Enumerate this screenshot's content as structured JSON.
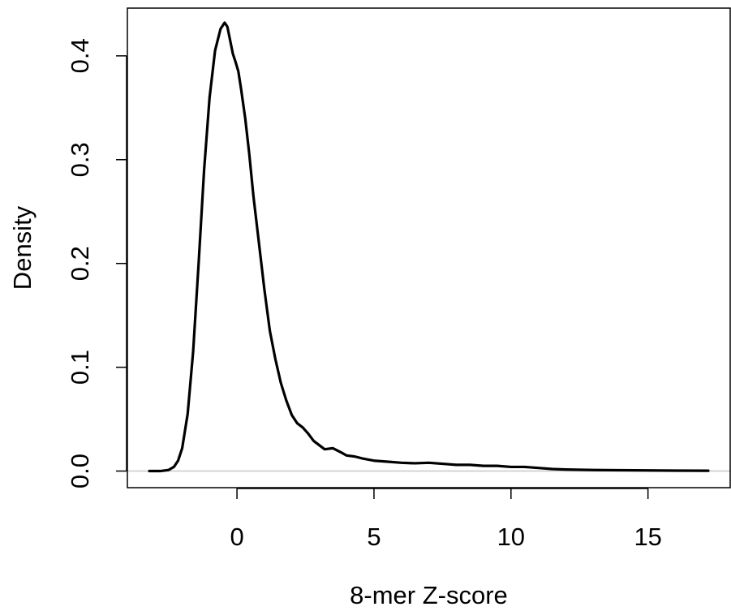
{
  "chart_data": {
    "type": "line",
    "title": "",
    "xlabel": "8-mer Z-score",
    "ylabel": "Density",
    "xlim": [
      -4,
      18
    ],
    "ylim": [
      -0.016,
      0.446
    ],
    "x_ticks": [
      0,
      5,
      10,
      15
    ],
    "x_tick_labels": [
      "0",
      "5",
      "10",
      "15"
    ],
    "y_ticks": [
      0.0,
      0.1,
      0.2,
      0.3,
      0.4
    ],
    "y_tick_labels": [
      "0.0",
      "0.1",
      "0.2",
      "0.3",
      "0.4"
    ],
    "grid": false,
    "legend": "none",
    "zero_line": {
      "y": 0,
      "color": "#c8c8c8"
    },
    "series": [
      {
        "color": "#000000",
        "x": [
          -3.2,
          -2.8,
          -2.5,
          -2.3,
          -2.15,
          -2.0,
          -1.8,
          -1.6,
          -1.4,
          -1.2,
          -1.0,
          -0.8,
          -0.6,
          -0.45,
          -0.35,
          -0.25,
          -0.15,
          -0.05,
          0.05,
          0.15,
          0.3,
          0.45,
          0.6,
          0.8,
          1.0,
          1.2,
          1.4,
          1.6,
          1.8,
          2.0,
          2.2,
          2.4,
          2.6,
          2.8,
          3.0,
          3.2,
          3.5,
          3.8,
          4.0,
          4.3,
          4.6,
          5.0,
          5.5,
          6.0,
          6.5,
          7.0,
          7.5,
          8.0,
          8.5,
          9.0,
          9.5,
          10.0,
          10.5,
          11.0,
          11.5,
          12.0,
          13.0,
          14.0,
          15.0,
          16.0,
          17.2
        ],
        "y": [
          0.0,
          0.0,
          0.001,
          0.004,
          0.01,
          0.022,
          0.055,
          0.115,
          0.2,
          0.29,
          0.36,
          0.405,
          0.426,
          0.432,
          0.428,
          0.415,
          0.402,
          0.394,
          0.385,
          0.368,
          0.34,
          0.305,
          0.265,
          0.22,
          0.175,
          0.135,
          0.108,
          0.085,
          0.068,
          0.054,
          0.046,
          0.042,
          0.036,
          0.029,
          0.025,
          0.021,
          0.022,
          0.018,
          0.015,
          0.014,
          0.012,
          0.01,
          0.009,
          0.008,
          0.0075,
          0.008,
          0.007,
          0.006,
          0.006,
          0.005,
          0.005,
          0.004,
          0.004,
          0.003,
          0.002,
          0.0015,
          0.001,
          0.0008,
          0.0006,
          0.0004,
          0.0003
        ]
      }
    ]
  }
}
